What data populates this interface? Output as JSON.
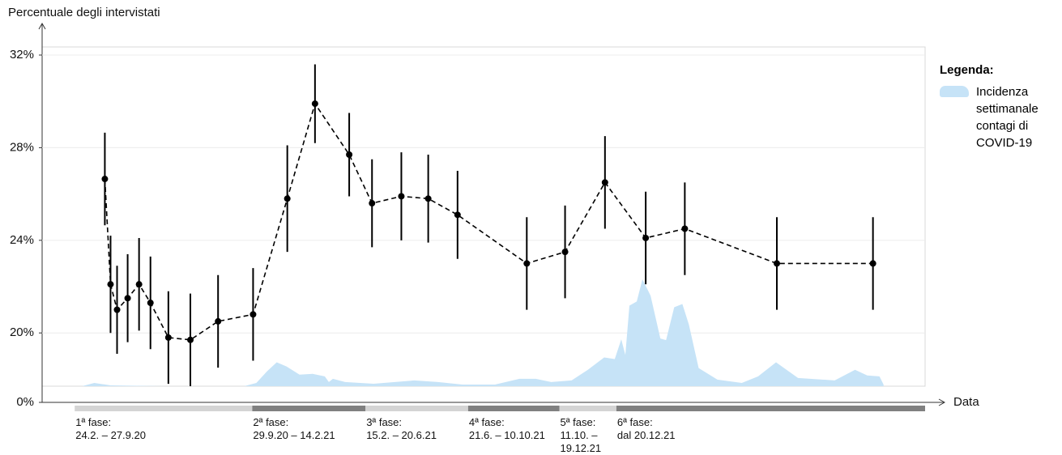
{
  "chart_data": {
    "type": "line",
    "y_label": "Percentuale degli intervistati",
    "x_label": "Data",
    "legend_title": "Legenda:",
    "legend": "right",
    "grid": true,
    "axis_break": true,
    "xlim": [
      "2020-01-15",
      "2023-01-03"
    ],
    "ylim": [
      17.7,
      32.35
    ],
    "yticks": [
      {
        "value": 0,
        "label": "0%"
      },
      {
        "value": 20,
        "label": "20%"
      },
      {
        "value": 24,
        "label": "24%"
      },
      {
        "value": 28,
        "label": "28%"
      },
      {
        "value": 32,
        "label": "32%"
      }
    ],
    "x": [
      "2020-04-01",
      "2020-04-08",
      "2020-04-16",
      "2020-04-29",
      "2020-05-13",
      "2020-05-27",
      "2020-06-18",
      "2020-07-15",
      "2020-08-18",
      "2020-09-30",
      "2020-11-11",
      "2020-12-15",
      "2021-01-26",
      "2021-02-23",
      "2021-03-31",
      "2021-05-03",
      "2021-06-08",
      "2021-09-01",
      "2021-10-18",
      "2021-12-06",
      "2022-01-25",
      "2022-03-14",
      "2022-07-05",
      "2022-10-31"
    ],
    "series": [
      {
        "color": "#000000",
        "values": [
          26.65,
          22.1,
          21.0,
          21.5,
          22.1,
          21.3,
          19.8,
          19.7,
          20.5,
          20.8,
          25.8,
          29.9,
          27.7,
          25.6,
          25.9,
          25.8,
          25.1,
          23.0,
          23.5,
          26.5,
          24.1,
          24.5,
          23.0,
          23.0
        ],
        "errors": [
          2.0,
          2.1,
          1.9,
          1.9,
          2.0,
          2.0,
          2.0,
          2.0,
          2.0,
          2.0,
          2.3,
          1.7,
          1.8,
          1.9,
          1.9,
          1.9,
          1.9,
          2.0,
          2.0,
          2.0,
          2.0,
          2.0,
          2.0,
          2.0
        ]
      }
    ],
    "area": {
      "name": "Incidenza settimanale contagi di COVID-19",
      "color": "#c6e3f7",
      "x": [
        "2020-03-04",
        "2020-03-19",
        "2020-04-08",
        "2020-06-12",
        "2020-09-19",
        "2020-10-04",
        "2020-10-17",
        "2020-10-29",
        "2020-11-10",
        "2020-11-26",
        "2020-12-12",
        "2020-12-27",
        "2021-01-01",
        "2021-01-06",
        "2021-01-21",
        "2021-02-25",
        "2021-04-16",
        "2021-05-15",
        "2021-06-14",
        "2021-07-24",
        "2021-08-23",
        "2021-09-12",
        "2021-10-01",
        "2021-10-26",
        "2021-11-15",
        "2021-12-05",
        "2021-12-18",
        "2021-12-26",
        "2021-12-31",
        "2022-01-05",
        "2022-01-14",
        "2022-01-21",
        "2022-01-31",
        "2022-02-12",
        "2022-02-19",
        "2022-03-01",
        "2022-03-11",
        "2022-03-19",
        "2022-03-31",
        "2022-04-23",
        "2022-05-23",
        "2022-06-12",
        "2022-07-04",
        "2022-07-31",
        "2022-09-14",
        "2022-10-09",
        "2022-10-24",
        "2022-11-08",
        "2022-11-13"
      ],
      "values": [
        0,
        4,
        1,
        0,
        0,
        4,
        18,
        29,
        24,
        14,
        15,
        12,
        5,
        9,
        5,
        3,
        7,
        5,
        2,
        2,
        9,
        9,
        5,
        7,
        20,
        35,
        33,
        57,
        38,
        98,
        103,
        130,
        110,
        58,
        56,
        96,
        100,
        75,
        22,
        8,
        4,
        12,
        29,
        10,
        7,
        20,
        13,
        12,
        2
      ]
    },
    "phases": [
      {
        "label": "1ª fase:",
        "range": "24.2. – 27.9.20",
        "start": "2020-02-24",
        "color": "#d4d4d4"
      },
      {
        "label": "2ª fase:",
        "range": "29.9.20 – 14.2.21",
        "start": "2020-09-29",
        "color": "#808080"
      },
      {
        "label": "3ª fase:",
        "range": "15.2. – 20.6.21",
        "start": "2021-02-15",
        "color": "#d4d4d4"
      },
      {
        "label": "4ª fase:",
        "range": "21.6. – 10.10.21",
        "start": "2021-06-21",
        "color": "#808080"
      },
      {
        "label": "5ª fase:",
        "range": "11.10. – 19.12.21",
        "start": "2021-10-11",
        "color": "#d4d4d4"
      },
      {
        "label": "6ª fase:",
        "range": "dal 20.12.21",
        "start": "2021-12-20",
        "color": "#808080"
      }
    ]
  }
}
